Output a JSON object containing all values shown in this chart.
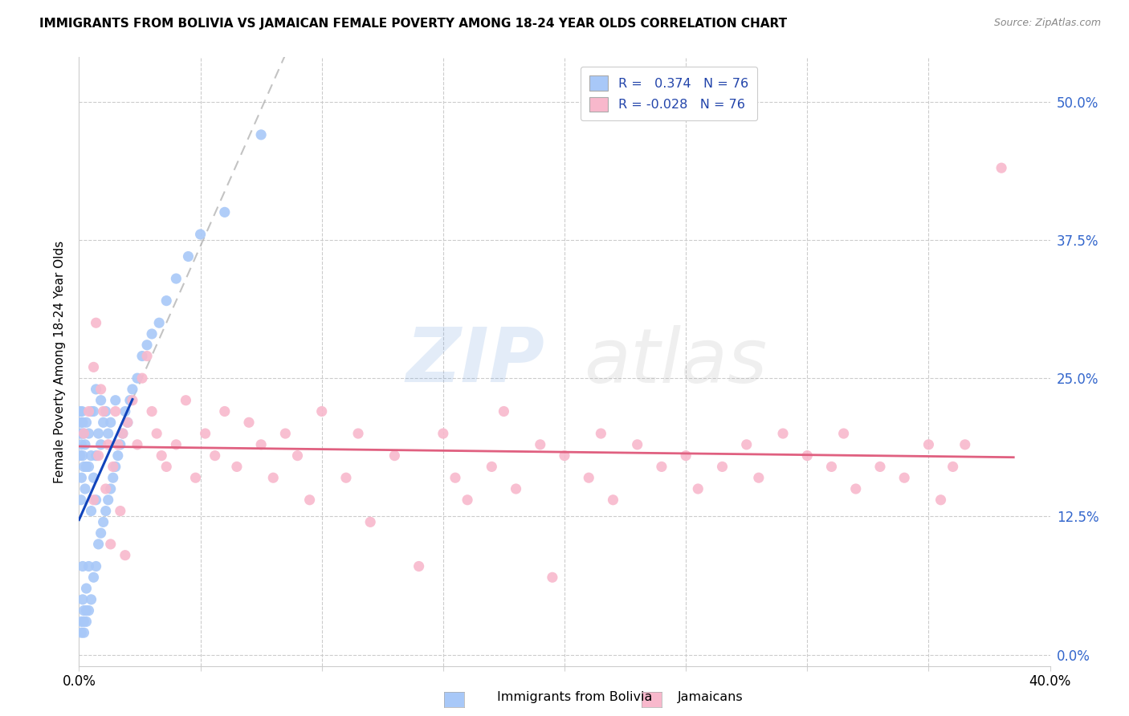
{
  "title": "IMMIGRANTS FROM BOLIVIA VS JAMAICAN FEMALE POVERTY AMONG 18-24 YEAR OLDS CORRELATION CHART",
  "source": "Source: ZipAtlas.com",
  "ylabel": "Female Poverty Among 18-24 Year Olds",
  "yticks": [
    "0.0%",
    "12.5%",
    "25.0%",
    "37.5%",
    "50.0%"
  ],
  "ytick_vals": [
    0.0,
    0.125,
    0.25,
    0.375,
    0.5
  ],
  "xlim": [
    0.0,
    0.4
  ],
  "ylim": [
    -0.01,
    0.54
  ],
  "R_bolivia": 0.374,
  "N_bolivia": 76,
  "R_jamaican": -0.028,
  "N_jamaican": 76,
  "color_bolivia": "#A8C8F8",
  "color_jamaican": "#F8B8CC",
  "color_line_bolivia": "#1144BB",
  "color_line_jamaican": "#E06080",
  "watermark_zip": "ZIP",
  "watermark_atlas": "atlas",
  "legend_label_bolivia": "Immigrants from Bolivia",
  "legend_label_jamaican": "Jamaicans",
  "bolivia_x": [
    0.0005,
    0.0005,
    0.0005,
    0.0008,
    0.0008,
    0.001,
    0.001,
    0.001,
    0.001,
    0.0012,
    0.0012,
    0.0015,
    0.0015,
    0.0015,
    0.0015,
    0.002,
    0.002,
    0.002,
    0.002,
    0.002,
    0.0025,
    0.0025,
    0.003,
    0.003,
    0.003,
    0.003,
    0.003,
    0.004,
    0.004,
    0.004,
    0.004,
    0.005,
    0.005,
    0.005,
    0.005,
    0.006,
    0.006,
    0.006,
    0.007,
    0.007,
    0.007,
    0.007,
    0.008,
    0.008,
    0.009,
    0.009,
    0.009,
    0.01,
    0.01,
    0.011,
    0.011,
    0.012,
    0.012,
    0.013,
    0.013,
    0.014,
    0.015,
    0.015,
    0.016,
    0.017,
    0.018,
    0.019,
    0.02,
    0.021,
    0.022,
    0.024,
    0.026,
    0.028,
    0.03,
    0.033,
    0.036,
    0.04,
    0.045,
    0.05,
    0.06,
    0.075
  ],
  "bolivia_y": [
    0.18,
    0.2,
    0.22,
    0.14,
    0.21,
    0.02,
    0.03,
    0.16,
    0.19,
    0.2,
    0.22,
    0.05,
    0.08,
    0.18,
    0.21,
    0.02,
    0.03,
    0.04,
    0.17,
    0.2,
    0.15,
    0.19,
    0.03,
    0.04,
    0.06,
    0.17,
    0.21,
    0.04,
    0.08,
    0.17,
    0.2,
    0.05,
    0.13,
    0.18,
    0.22,
    0.07,
    0.16,
    0.22,
    0.08,
    0.14,
    0.18,
    0.24,
    0.1,
    0.2,
    0.11,
    0.19,
    0.23,
    0.12,
    0.21,
    0.13,
    0.22,
    0.14,
    0.2,
    0.15,
    0.21,
    0.16,
    0.17,
    0.23,
    0.18,
    0.19,
    0.2,
    0.22,
    0.21,
    0.23,
    0.24,
    0.25,
    0.27,
    0.28,
    0.29,
    0.3,
    0.32,
    0.34,
    0.36,
    0.38,
    0.4,
    0.47
  ],
  "jamaican_x": [
    0.002,
    0.004,
    0.006,
    0.006,
    0.007,
    0.008,
    0.009,
    0.01,
    0.011,
    0.012,
    0.013,
    0.014,
    0.015,
    0.016,
    0.017,
    0.018,
    0.019,
    0.02,
    0.022,
    0.024,
    0.026,
    0.028,
    0.03,
    0.032,
    0.034,
    0.036,
    0.04,
    0.044,
    0.048,
    0.052,
    0.056,
    0.06,
    0.065,
    0.07,
    0.075,
    0.08,
    0.085,
    0.09,
    0.095,
    0.1,
    0.11,
    0.115,
    0.12,
    0.13,
    0.14,
    0.15,
    0.155,
    0.16,
    0.17,
    0.175,
    0.18,
    0.19,
    0.195,
    0.2,
    0.21,
    0.215,
    0.22,
    0.23,
    0.24,
    0.25,
    0.255,
    0.265,
    0.275,
    0.28,
    0.29,
    0.3,
    0.31,
    0.315,
    0.32,
    0.33,
    0.34,
    0.35,
    0.355,
    0.36,
    0.365,
    0.38
  ],
  "jamaican_y": [
    0.2,
    0.22,
    0.14,
    0.26,
    0.3,
    0.18,
    0.24,
    0.22,
    0.15,
    0.19,
    0.1,
    0.17,
    0.22,
    0.19,
    0.13,
    0.2,
    0.09,
    0.21,
    0.23,
    0.19,
    0.25,
    0.27,
    0.22,
    0.2,
    0.18,
    0.17,
    0.19,
    0.23,
    0.16,
    0.2,
    0.18,
    0.22,
    0.17,
    0.21,
    0.19,
    0.16,
    0.2,
    0.18,
    0.14,
    0.22,
    0.16,
    0.2,
    0.12,
    0.18,
    0.08,
    0.2,
    0.16,
    0.14,
    0.17,
    0.22,
    0.15,
    0.19,
    0.07,
    0.18,
    0.16,
    0.2,
    0.14,
    0.19,
    0.17,
    0.18,
    0.15,
    0.17,
    0.19,
    0.16,
    0.2,
    0.18,
    0.17,
    0.2,
    0.15,
    0.17,
    0.16,
    0.19,
    0.14,
    0.17,
    0.19,
    0.44
  ]
}
